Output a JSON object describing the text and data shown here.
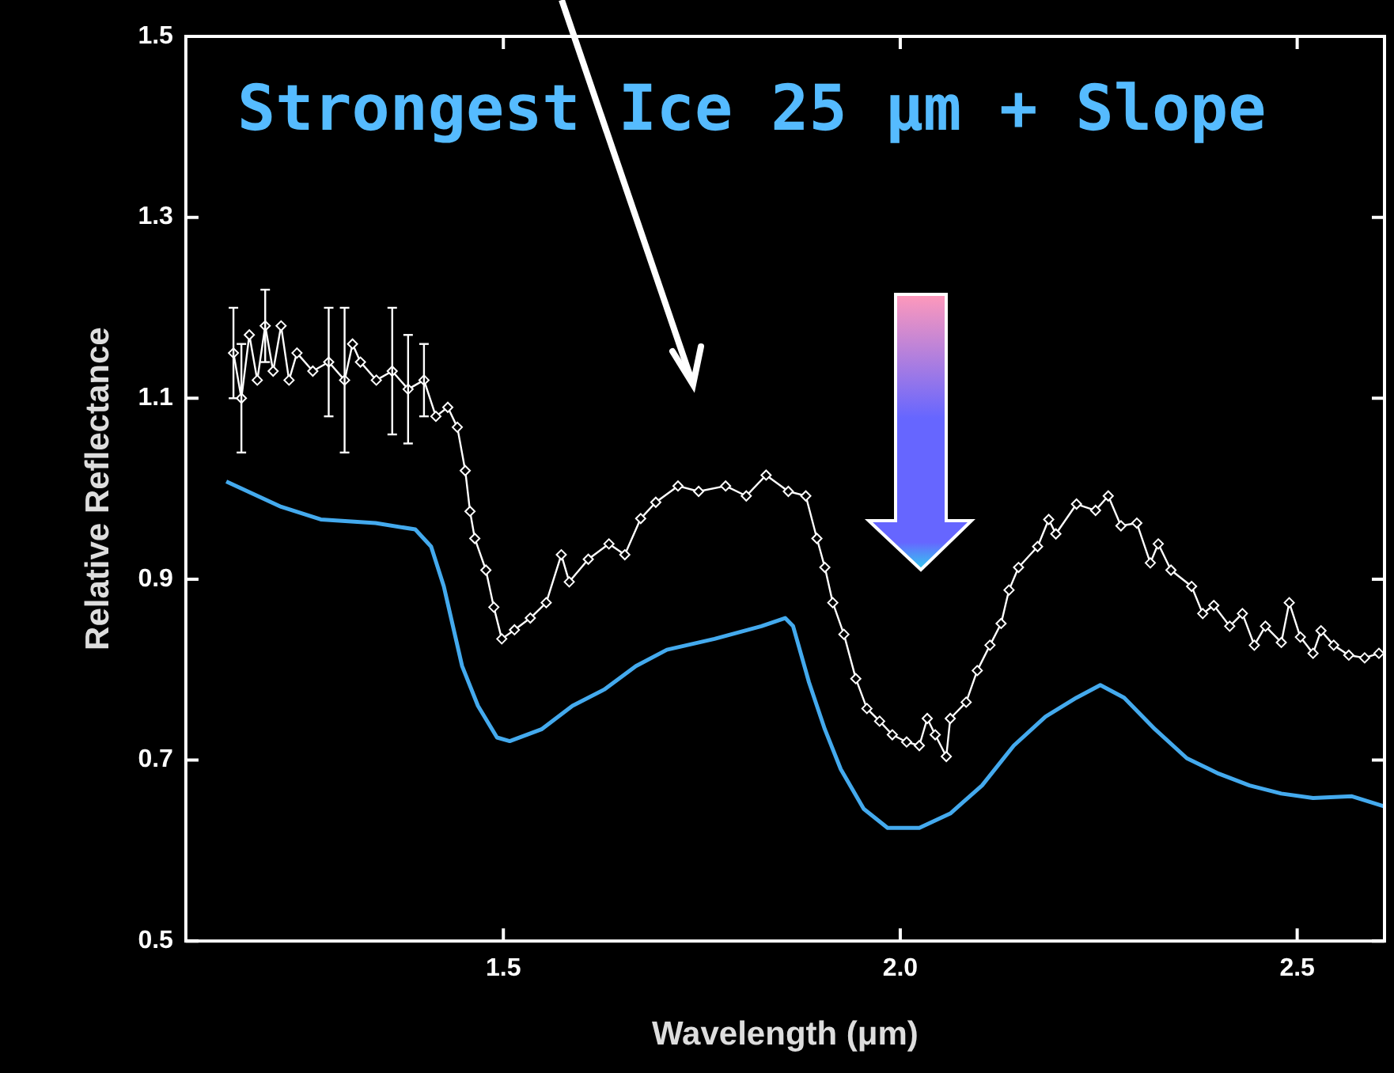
{
  "chart_data": {
    "type": "line",
    "xlabel": "Wavelength (μm)",
    "ylabel": "Relative Reflectance",
    "annotations": [
      "Strongest Ice 25 μm + Slope"
    ],
    "xlim": [
      1.1,
      2.61
    ],
    "ylim": [
      0.5,
      1.5
    ],
    "xticks": [
      1.5,
      {
        "value": 2,
        "label": "2.0"
      },
      2.5
    ],
    "yticks": [
      0.5,
      0.7,
      0.9,
      1.1,
      1.3,
      1.5
    ],
    "grid": false,
    "legend": false,
    "line_style": "solid",
    "series": [
      {
        "color": "#ffffff",
        "marker": "diamond",
        "x": [
          1.16,
          1.17,
          1.18,
          1.19,
          1.2,
          1.21,
          1.22,
          1.23,
          1.24,
          1.26,
          1.28,
          1.3,
          1.31,
          1.32,
          1.34,
          1.36,
          1.38,
          1.4,
          1.415,
          1.43,
          1.442,
          1.452,
          1.458,
          1.464,
          1.478,
          1.488,
          1.498,
          1.514,
          1.534,
          1.554,
          1.573,
          1.583,
          1.607,
          1.633,
          1.653,
          1.673,
          1.692,
          1.72,
          1.746,
          1.78,
          1.806,
          1.831,
          1.859,
          1.881,
          1.895,
          1.905,
          1.915,
          1.929,
          1.944,
          1.958,
          1.974,
          1.99,
          2.008,
          2.024,
          2.034,
          2.044,
          2.058,
          2.063,
          2.083,
          2.097,
          2.113,
          2.127,
          2.137,
          2.149,
          2.173,
          2.187,
          2.196,
          2.222,
          2.246,
          2.262,
          2.278,
          2.298,
          2.315,
          2.325,
          2.341,
          2.367,
          2.381,
          2.395,
          2.415,
          2.431,
          2.446,
          2.46,
          2.48,
          2.49,
          2.504,
          2.52,
          2.53,
          2.546,
          2.565,
          2.585,
          2.603
        ],
        "values": [
          1.15,
          1.1,
          1.17,
          1.12,
          1.18,
          1.13,
          1.18,
          1.12,
          1.15,
          1.13,
          1.14,
          1.12,
          1.16,
          1.14,
          1.12,
          1.13,
          1.11,
          1.12,
          1.08,
          1.09,
          1.068,
          1.02,
          0.975,
          0.945,
          0.91,
          0.869,
          0.834,
          0.844,
          0.857,
          0.874,
          0.927,
          0.897,
          0.922,
          0.939,
          0.927,
          0.967,
          0.985,
          1.003,
          0.997,
          1.003,
          0.992,
          1.015,
          0.997,
          0.992,
          0.945,
          0.913,
          0.874,
          0.839,
          0.79,
          0.757,
          0.743,
          0.728,
          0.72,
          0.716,
          0.746,
          0.728,
          0.704,
          0.746,
          0.764,
          0.799,
          0.827,
          0.851,
          0.888,
          0.913,
          0.936,
          0.966,
          0.95,
          0.983,
          0.976,
          0.992,
          0.959,
          0.962,
          0.918,
          0.939,
          0.91,
          0.892,
          0.862,
          0.871,
          0.848,
          0.862,
          0.827,
          0.848,
          0.83,
          0.874,
          0.836,
          0.818,
          0.843,
          0.827,
          0.816,
          0.813,
          0.818
        ],
        "errors": [
          0.05,
          0.06,
          null,
          null,
          0.04,
          null,
          null,
          null,
          null,
          null,
          0.06,
          0.08,
          null,
          null,
          null,
          0.07,
          0.06,
          0.04,
          null,
          null,
          null,
          null,
          null,
          null,
          null,
          null,
          null,
          null,
          null,
          null,
          null,
          null,
          null,
          null,
          null,
          null,
          null,
          null,
          null,
          null,
          null,
          null,
          null,
          null,
          null,
          null,
          null,
          null,
          null,
          null,
          null,
          null,
          null,
          null,
          null,
          null,
          null,
          null,
          null,
          null,
          null,
          null,
          null,
          null,
          null,
          null,
          null,
          null,
          null,
          null,
          null,
          null,
          null,
          null,
          null,
          null,
          null,
          null,
          null,
          null,
          null,
          null,
          null,
          null,
          null,
          null,
          null,
          null,
          null,
          null,
          null
        ]
      },
      {
        "color": "#44aaee",
        "marker": "none",
        "x": [
          1.151,
          1.22,
          1.27,
          1.339,
          1.389,
          1.409,
          1.425,
          1.448,
          1.468,
          1.492,
          1.508,
          1.548,
          1.587,
          1.627,
          1.667,
          1.706,
          1.766,
          1.825,
          1.855,
          1.865,
          1.885,
          1.905,
          1.925,
          1.954,
          1.984,
          2.024,
          2.063,
          2.103,
          2.143,
          2.183,
          2.222,
          2.252,
          2.282,
          2.321,
          2.361,
          2.401,
          2.44,
          2.48,
          2.52,
          2.569,
          2.609
        ],
        "values": [
          1.008,
          0.98,
          0.966,
          0.962,
          0.955,
          0.936,
          0.892,
          0.804,
          0.76,
          0.725,
          0.721,
          0.734,
          0.76,
          0.778,
          0.804,
          0.822,
          0.834,
          0.848,
          0.857,
          0.848,
          0.786,
          0.734,
          0.69,
          0.646,
          0.625,
          0.625,
          0.641,
          0.672,
          0.716,
          0.748,
          0.769,
          0.783,
          0.769,
          0.734,
          0.702,
          0.685,
          0.672,
          0.663,
          0.658,
          0.66,
          0.649
        ]
      }
    ]
  }
}
